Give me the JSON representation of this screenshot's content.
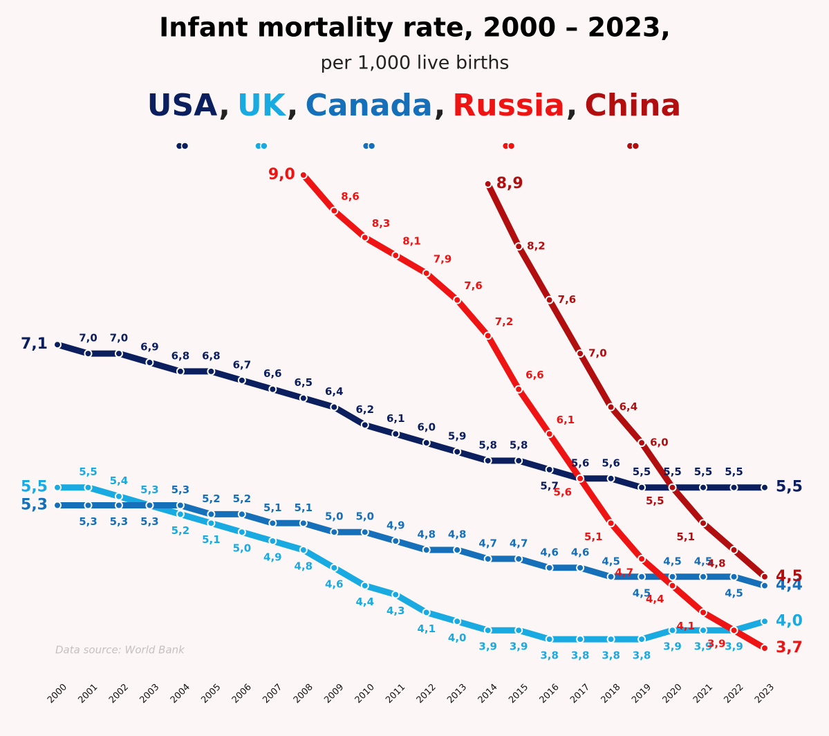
{
  "chart_data": {
    "type": "line",
    "title": "Infant mortality rate, 2000 – 2023,",
    "subtitle": "per 1,000 live births",
    "legend_separator": ",",
    "source": "Data source: World Bank",
    "categories": [
      "2000",
      "2001",
      "2002",
      "2003",
      "2004",
      "2005",
      "2006",
      "2007",
      "2008",
      "2009",
      "2010",
      "2011",
      "2012",
      "2013",
      "2014",
      "2015",
      "2016",
      "2017",
      "2018",
      "2019",
      "2020",
      "2021",
      "2022",
      "2023"
    ],
    "series": [
      {
        "name": "USA",
        "color": "#0b1f5e",
        "values": [
          7.1,
          7.0,
          7.0,
          6.9,
          6.8,
          6.8,
          6.7,
          6.6,
          6.5,
          6.4,
          6.2,
          6.1,
          6.0,
          5.9,
          5.8,
          5.8,
          5.7,
          5.6,
          5.6,
          5.5,
          5.5,
          5.5,
          5.5,
          5.5
        ],
        "value_labels": [
          "7,1",
          "7,0",
          "7,0",
          "6,9",
          "6,8",
          "6,8",
          "6,7",
          "6,6",
          "6,5",
          "6,4",
          "6,2",
          "6,1",
          "6,0",
          "5,9",
          "5,8",
          "5,8",
          "5,7",
          "5,6",
          "5,6",
          "5,5",
          "5,5",
          "5,5",
          "5,5",
          "5,5"
        ]
      },
      {
        "name": "UK",
        "color": "#1aaae2",
        "values": [
          5.5,
          5.5,
          5.4,
          5.3,
          5.2,
          5.1,
          5.0,
          4.9,
          4.8,
          4.6,
          4.4,
          4.3,
          4.1,
          4.0,
          3.9,
          3.9,
          3.8,
          3.8,
          3.8,
          3.8,
          3.9,
          3.9,
          3.9,
          4.0
        ],
        "value_labels": [
          "5,5",
          "5,5",
          "5,4",
          "5,3",
          "5,2",
          "5,1",
          "5,0",
          "4,9",
          "4,8",
          "4,6",
          "4,4",
          "4,3",
          "4,1",
          "4,0",
          "3,9",
          "3,9",
          "3,8",
          "3,8",
          "3,8",
          "3,8",
          "3,9",
          "3,9",
          "3,9",
          "4,0"
        ]
      },
      {
        "name": "Canada",
        "color": "#1670b9",
        "values": [
          5.3,
          5.3,
          5.3,
          5.3,
          5.3,
          5.2,
          5.2,
          5.1,
          5.1,
          5.0,
          5.0,
          4.9,
          4.8,
          4.8,
          4.7,
          4.7,
          4.6,
          4.6,
          4.5,
          4.5,
          4.5,
          4.5,
          4.5,
          4.4
        ],
        "value_labels": [
          "5,3",
          "5,3",
          "5,3",
          "5,3",
          "5,3",
          "5,2",
          "5,2",
          "5,1",
          "5,1",
          "5,0",
          "5,0",
          "4,9",
          "4,8",
          "4,8",
          "4,7",
          "4,7",
          "4,6",
          "4,6",
          "4,5",
          "4,5",
          "4,5",
          "4,5",
          "4,5",
          "4,4"
        ]
      },
      {
        "name": "Russia",
        "color": "#ee1414",
        "values": [
          null,
          null,
          null,
          null,
          null,
          null,
          null,
          null,
          9.0,
          8.6,
          8.3,
          8.1,
          7.9,
          7.6,
          7.2,
          6.6,
          6.1,
          5.6,
          5.1,
          4.7,
          4.4,
          4.1,
          3.9,
          3.7
        ],
        "value_labels": [
          null,
          null,
          null,
          null,
          null,
          null,
          null,
          null,
          "9,0",
          "8,6",
          "8,3",
          "8,1",
          "7,9",
          "7,6",
          "7,2",
          "6,6",
          "6,1",
          "5,6",
          "5,1",
          "4,7",
          "4,4",
          "4,1",
          "3,9",
          "3,7"
        ]
      },
      {
        "name": "China",
        "color": "#b10e10",
        "values": [
          null,
          null,
          null,
          null,
          null,
          null,
          null,
          null,
          null,
          null,
          null,
          null,
          null,
          null,
          8.9,
          8.2,
          7.6,
          7.0,
          6.4,
          6.0,
          5.5,
          5.1,
          4.8,
          4.5
        ],
        "value_labels": [
          null,
          null,
          null,
          null,
          null,
          null,
          null,
          null,
          null,
          null,
          null,
          null,
          null,
          null,
          "8,9",
          "8,2",
          "7,6",
          "7,0",
          "6,4",
          "6,0",
          "5,5",
          "5,1",
          "4,8",
          "4,5"
        ]
      }
    ]
  }
}
